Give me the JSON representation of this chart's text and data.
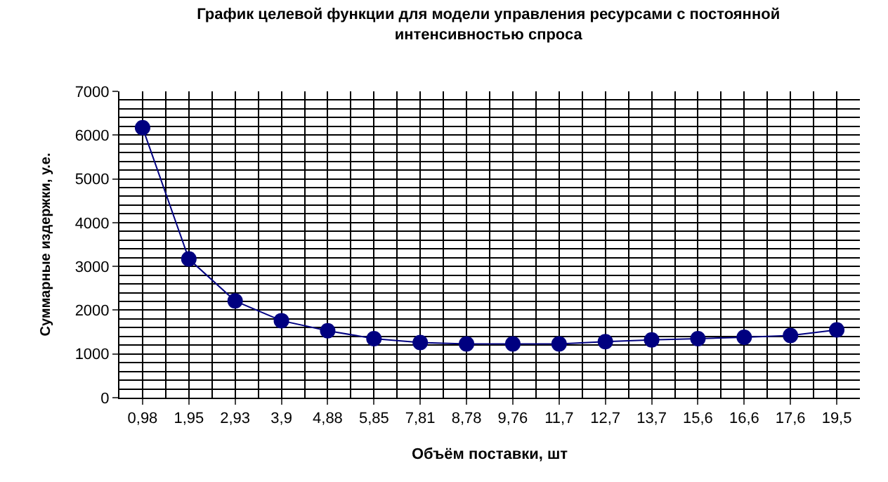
{
  "chart_data": {
    "type": "line",
    "title": "График целевой функции для модели управления ресурсами с постоянной интенсивностью спроса",
    "xlabel": "Объём поставки, шт",
    "ylabel": "Суммарные издержки, у.е.",
    "categories": [
      "0,98",
      "1,95",
      "2,93",
      "3,9",
      "4,88",
      "5,85",
      "7,81",
      "8,78",
      "9,76",
      "11,7",
      "12,7",
      "13,7",
      "15,6",
      "16,6",
      "17,6",
      "19,5"
    ],
    "series": [
      {
        "color": "#000080",
        "values": [
          6170,
          3170,
          2210,
          1760,
          1530,
          1350,
          1260,
          1230,
          1230,
          1230,
          1280,
          1320,
          1350,
          1380,
          1420,
          1550
        ]
      }
    ],
    "ylim": [
      0,
      7000
    ],
    "yticks": [
      0,
      1000,
      2000,
      3000,
      4000,
      5000,
      6000,
      7000
    ],
    "grid": true,
    "marker": "circle",
    "line_style": "solid"
  }
}
